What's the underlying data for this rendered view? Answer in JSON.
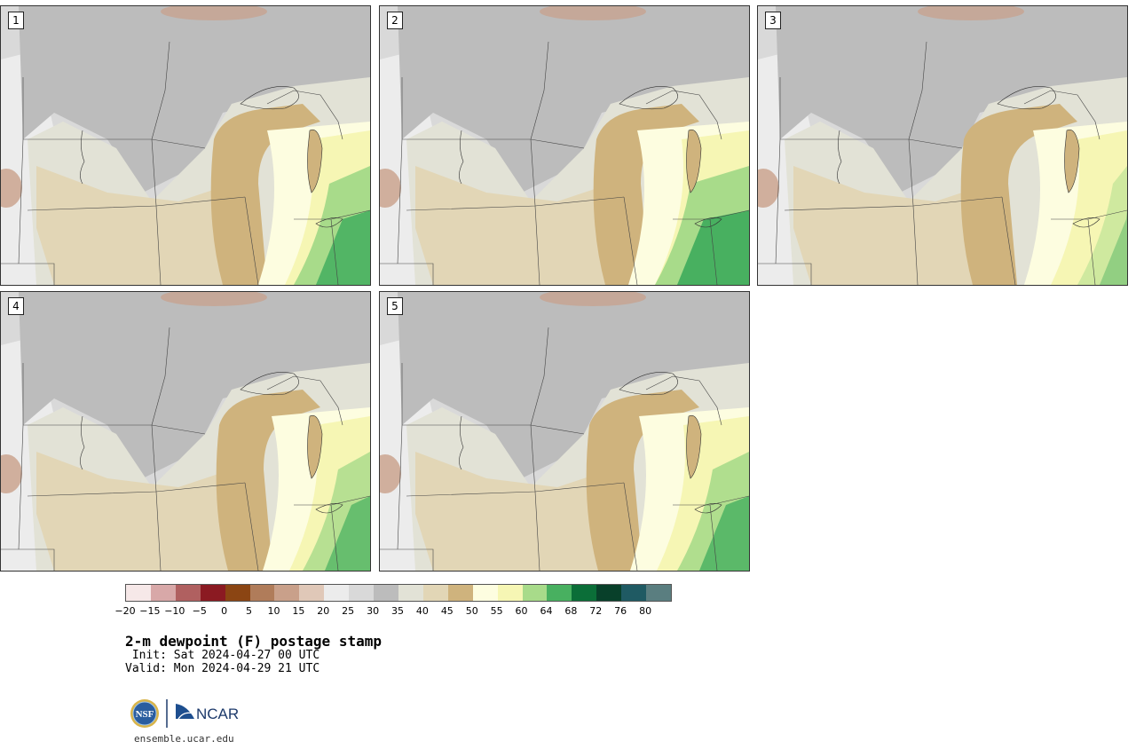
{
  "panels": [
    {
      "label": "1"
    },
    {
      "label": "2"
    },
    {
      "label": "3"
    },
    {
      "label": "4"
    },
    {
      "label": "5"
    }
  ],
  "colorbar": {
    "units": "F",
    "colors": [
      "#f6e8e8",
      "#d8a8a8",
      "#b06060",
      "#8b1a22",
      "#8b4513",
      "#b07c5a",
      "#c9a08a",
      "#e0c8b8",
      "#ececec",
      "#d9d9d9",
      "#bcbcbc",
      "#e2e2d6",
      "#e2d6b6",
      "#cfb37d",
      "#fdfde0",
      "#f6f6b4",
      "#a8db8a",
      "#48b060",
      "#0b6e38",
      "#08402a",
      "#1f5a63",
      "#5a7e80"
    ],
    "ticks": [
      "−20",
      "−15",
      "−10",
      "−5",
      "0",
      "5",
      "10",
      "15",
      "20",
      "25",
      "30",
      "35",
      "40",
      "45",
      "50",
      "55",
      "60",
      "64",
      "68",
      "72",
      "76",
      "80"
    ]
  },
  "title": "2-m dewpoint (F) postage stamp",
  "init": " Init: Sat 2024-04-27 00 UTC",
  "valid": "Valid: Mon 2024-04-29 21 UTC",
  "logo": {
    "nsf_text": "NSF",
    "ncar_text": "NCAR"
  },
  "url": "ensemble.ucar.edu"
}
